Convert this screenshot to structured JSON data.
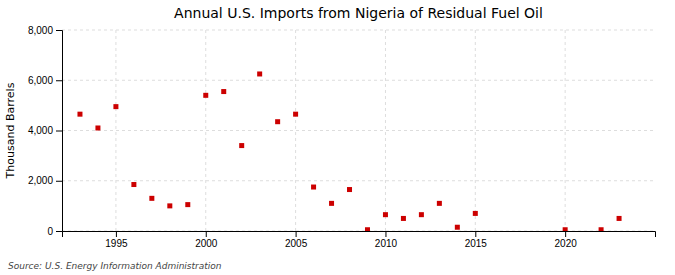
{
  "chart_data": {
    "type": "scatter",
    "title": "Annual U.S. Imports from Nigeria of Residual Fuel Oil",
    "ylabel": "Thousand Barrels",
    "annotations": [
      "Source: U.S. Energy Information Administration"
    ],
    "x": [
      1993,
      1994,
      1995,
      1996,
      1997,
      1998,
      1999,
      2000,
      2001,
      2002,
      2003,
      2004,
      2005,
      2006,
      2007,
      2008,
      2009,
      2010,
      2011,
      2012,
      2013,
      2014,
      2015,
      2016,
      2017,
      2018,
      2019,
      2020,
      2021,
      2022,
      2023
    ],
    "values": [
      4650,
      4100,
      4950,
      1850,
      1300,
      1000,
      1050,
      5400,
      5550,
      3400,
      6250,
      4350,
      4650,
      1750,
      1100,
      1650,
      50,
      650,
      500,
      650,
      1100,
      150,
      700,
      null,
      null,
      null,
      null,
      50,
      null,
      50,
      500
    ],
    "color": "#cc0000",
    "marker": "square",
    "xlim": [
      1992,
      2025
    ],
    "xticks": [
      1995,
      2000,
      2005,
      2010,
      2015,
      2020
    ],
    "ylim": [
      0,
      8000
    ],
    "yticks": [
      0,
      {
        "value": 2000,
        "label": "2,000"
      },
      {
        "value": 4000,
        "label": "4,000"
      },
      {
        "value": 6000,
        "label": "6,000"
      },
      {
        "value": 8000,
        "label": "8,000"
      }
    ],
    "grid": true
  }
}
